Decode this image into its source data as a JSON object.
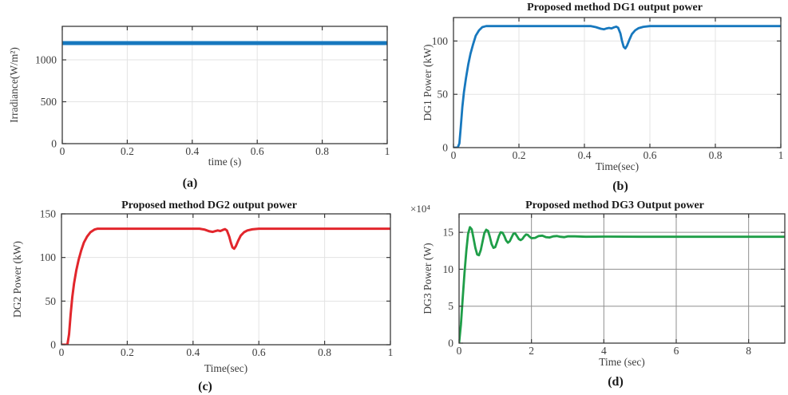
{
  "figure_background": "#ffffff",
  "chart_data": [
    {
      "type": "line",
      "id": "a",
      "title": "",
      "caption": "(a)",
      "xlabel": "time (s)",
      "ylabel": "Irradiance(W/m²)",
      "multiplier": "",
      "xlim": [
        0,
        1
      ],
      "ylim": [
        0,
        1400
      ],
      "xticks": [
        0,
        0.2,
        0.4,
        0.6,
        0.8,
        1
      ],
      "xtick_labels": [
        "0",
        "0.2",
        "0.4",
        "0.6",
        "0.8",
        "1"
      ],
      "yticks": [
        0,
        500,
        1000
      ],
      "ytick_labels": [
        "0",
        "500",
        "1000"
      ],
      "grid": true,
      "grid_color": "#e3e3e3",
      "axis_color": "#3a3a3a",
      "line_color": "#1778be",
      "line_width": 5,
      "points": [
        [
          0,
          1200
        ],
        [
          1,
          1200
        ]
      ]
    },
    {
      "type": "line",
      "id": "b",
      "title": "Proposed method DG1 output power",
      "caption": "(b)",
      "xlabel": "Time(sec)",
      "ylabel": "DG1 Power (kW)",
      "multiplier": "",
      "xlim": [
        0,
        1
      ],
      "ylim": [
        0,
        122
      ],
      "xticks": [
        0,
        0.2,
        0.4,
        0.6,
        0.8,
        1
      ],
      "xtick_labels": [
        "0",
        "0.2",
        "0.4",
        "0.6",
        "0.8",
        "1"
      ],
      "yticks": [
        0,
        50,
        100
      ],
      "ytick_labels": [
        "0",
        "50",
        "100"
      ],
      "grid": true,
      "grid_color": "#e3e3e3",
      "axis_color": "#3a3a3a",
      "line_color": "#1778be",
      "line_width": 2.8,
      "points": [
        [
          0,
          0
        ],
        [
          0.013,
          0
        ],
        [
          0.018,
          4
        ],
        [
          0.022,
          18
        ],
        [
          0.027,
          38
        ],
        [
          0.032,
          52
        ],
        [
          0.038,
          65
        ],
        [
          0.045,
          78
        ],
        [
          0.052,
          88
        ],
        [
          0.06,
          97
        ],
        [
          0.068,
          105
        ],
        [
          0.078,
          110
        ],
        [
          0.088,
          113
        ],
        [
          0.1,
          114
        ],
        [
          0.15,
          114
        ],
        [
          0.25,
          114
        ],
        [
          0.35,
          114
        ],
        [
          0.42,
          114
        ],
        [
          0.435,
          113
        ],
        [
          0.45,
          111.5
        ],
        [
          0.46,
          111
        ],
        [
          0.468,
          111.8
        ],
        [
          0.475,
          112.3
        ],
        [
          0.483,
          111.8
        ],
        [
          0.49,
          112.8
        ],
        [
          0.497,
          113.5
        ],
        [
          0.503,
          112.5
        ],
        [
          0.51,
          107
        ],
        [
          0.515,
          100
        ],
        [
          0.52,
          94.5
        ],
        [
          0.525,
          93
        ],
        [
          0.53,
          95.5
        ],
        [
          0.537,
          101
        ],
        [
          0.545,
          106.5
        ],
        [
          0.555,
          110
        ],
        [
          0.565,
          112
        ],
        [
          0.58,
          113.3
        ],
        [
          0.6,
          114
        ],
        [
          0.7,
          114
        ],
        [
          0.85,
          114
        ],
        [
          1,
          114
        ]
      ]
    },
    {
      "type": "line",
      "id": "c",
      "title": "Proposed method DG2 output power",
      "caption": "(c)",
      "xlabel": "Time(sec)",
      "ylabel": "DG2 Power (kW)",
      "multiplier": "",
      "xlim": [
        0,
        1
      ],
      "ylim": [
        0,
        150
      ],
      "xticks": [
        0,
        0.2,
        0.4,
        0.6,
        0.8,
        1
      ],
      "xtick_labels": [
        "0",
        "0.2",
        "0.4",
        "0.6",
        "0.8",
        "1"
      ],
      "yticks": [
        0,
        50,
        100,
        150
      ],
      "ytick_labels": [
        "0",
        "50",
        "100",
        "150"
      ],
      "grid": true,
      "grid_color": "#e3e3e3",
      "axis_color": "#3a3a3a",
      "line_color": "#e2262c",
      "line_width": 3,
      "points": [
        [
          0,
          0
        ],
        [
          0.018,
          0
        ],
        [
          0.023,
          12
        ],
        [
          0.028,
          35
        ],
        [
          0.033,
          55
        ],
        [
          0.038,
          70
        ],
        [
          0.045,
          85
        ],
        [
          0.052,
          97
        ],
        [
          0.06,
          108
        ],
        [
          0.068,
          117
        ],
        [
          0.078,
          124
        ],
        [
          0.088,
          129
        ],
        [
          0.1,
          132
        ],
        [
          0.11,
          133
        ],
        [
          0.2,
          133
        ],
        [
          0.3,
          133
        ],
        [
          0.42,
          133
        ],
        [
          0.435,
          132
        ],
        [
          0.45,
          130
        ],
        [
          0.46,
          129.3
        ],
        [
          0.468,
          130.2
        ],
        [
          0.475,
          131
        ],
        [
          0.483,
          130.3
        ],
        [
          0.49,
          131.5
        ],
        [
          0.497,
          132.5
        ],
        [
          0.503,
          131
        ],
        [
          0.51,
          124
        ],
        [
          0.515,
          117
        ],
        [
          0.52,
          111.5
        ],
        [
          0.525,
          110
        ],
        [
          0.53,
          113
        ],
        [
          0.537,
          119
        ],
        [
          0.545,
          125
        ],
        [
          0.555,
          129
        ],
        [
          0.565,
          131
        ],
        [
          0.58,
          132.3
        ],
        [
          0.6,
          133
        ],
        [
          0.75,
          133
        ],
        [
          0.9,
          133
        ],
        [
          1,
          133
        ]
      ]
    },
    {
      "type": "line",
      "id": "d",
      "title": "Proposed method DG3 Output power",
      "caption": "(d)",
      "xlabel": "Time (sec)",
      "ylabel": "DG3 Power (W)",
      "multiplier": "×10⁴",
      "xlim": [
        0,
        9
      ],
      "ylim": [
        0,
        17.5
      ],
      "xticks": [
        0,
        2,
        4,
        6,
        8
      ],
      "xtick_labels": [
        "0",
        "2",
        "4",
        "6",
        "8"
      ],
      "yticks": [
        0,
        5,
        10,
        15
      ],
      "ytick_labels": [
        "0",
        "5",
        "10",
        "15"
      ],
      "grid": true,
      "grid_color": "#8f8f8f",
      "axis_color": "#3a3a3a",
      "line_color": "#1f9e48",
      "line_width": 2.8,
      "points": [
        [
          0,
          0
        ],
        [
          0.05,
          2.5
        ],
        [
          0.1,
          6
        ],
        [
          0.15,
          9.5
        ],
        [
          0.2,
          12.5
        ],
        [
          0.25,
          14.8
        ],
        [
          0.3,
          15.7
        ],
        [
          0.35,
          15.4
        ],
        [
          0.4,
          14.2
        ],
        [
          0.45,
          12.9
        ],
        [
          0.5,
          12.0
        ],
        [
          0.55,
          11.9
        ],
        [
          0.6,
          12.6
        ],
        [
          0.65,
          13.8
        ],
        [
          0.7,
          14.9
        ],
        [
          0.75,
          15.35
        ],
        [
          0.8,
          15.2
        ],
        [
          0.85,
          14.4
        ],
        [
          0.9,
          13.4
        ],
        [
          0.95,
          12.9
        ],
        [
          1.0,
          13.0
        ],
        [
          1.05,
          13.7
        ],
        [
          1.1,
          14.5
        ],
        [
          1.15,
          15.0
        ],
        [
          1.2,
          14.95
        ],
        [
          1.25,
          14.5
        ],
        [
          1.3,
          13.9
        ],
        [
          1.35,
          13.6
        ],
        [
          1.4,
          13.8
        ],
        [
          1.45,
          14.3
        ],
        [
          1.5,
          14.8
        ],
        [
          1.55,
          14.85
        ],
        [
          1.6,
          14.5
        ],
        [
          1.65,
          14.1
        ],
        [
          1.7,
          13.95
        ],
        [
          1.75,
          14.1
        ],
        [
          1.8,
          14.45
        ],
        [
          1.85,
          14.7
        ],
        [
          1.9,
          14.65
        ],
        [
          1.95,
          14.4
        ],
        [
          2.0,
          14.2
        ],
        [
          2.1,
          14.25
        ],
        [
          2.2,
          14.5
        ],
        [
          2.3,
          14.55
        ],
        [
          2.4,
          14.35
        ],
        [
          2.5,
          14.3
        ],
        [
          2.6,
          14.45
        ],
        [
          2.7,
          14.5
        ],
        [
          2.8,
          14.4
        ],
        [
          2.9,
          14.35
        ],
        [
          3.0,
          14.45
        ],
        [
          3.2,
          14.45
        ],
        [
          3.5,
          14.4
        ],
        [
          4,
          14.42
        ],
        [
          5,
          14.4
        ],
        [
          6,
          14.4
        ],
        [
          7,
          14.4
        ],
        [
          8,
          14.4
        ],
        [
          9,
          14.4
        ]
      ]
    }
  ]
}
